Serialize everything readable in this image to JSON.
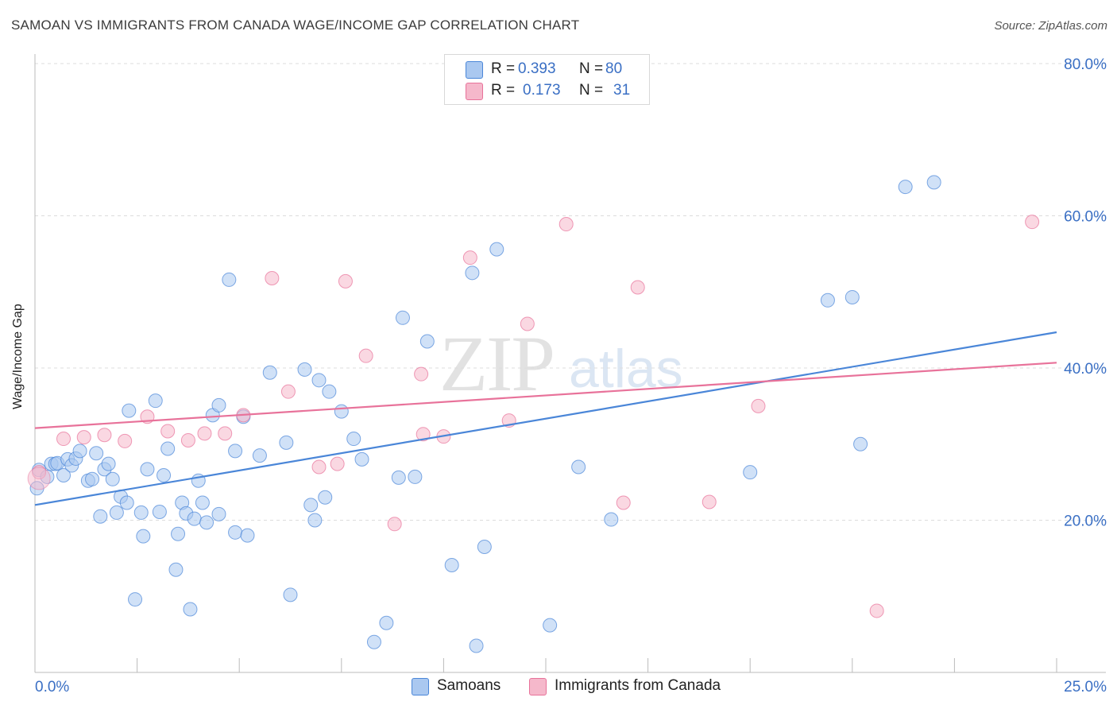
{
  "title": "SAMOAN VS IMMIGRANTS FROM CANADA WAGE/INCOME GAP CORRELATION CHART",
  "source": "Source: ZipAtlas.com",
  "watermark": {
    "part1": "ZIP",
    "part2": "atlas"
  },
  "legend": {
    "rows": [
      {
        "r_label": "R =",
        "r_value": "0.393",
        "n_label": "N =",
        "n_value": "80",
        "color": "#aac8f0"
      },
      {
        "r_label": "R =",
        "r_value": "0.173",
        "n_label": "N =",
        "n_value": "31",
        "color": "#f5b8cb"
      }
    ]
  },
  "bottom_legend": [
    {
      "label": "Samoans",
      "color": "#aac8f0"
    },
    {
      "label": "Immigrants from Canada",
      "color": "#f5b8cb"
    }
  ],
  "chart_data": {
    "type": "scatter",
    "ylabel": "Wage/Income Gap",
    "xlabel": "",
    "xlim": [
      0,
      25
    ],
    "ylim": [
      0,
      80
    ],
    "x_tick_labels": [
      "0.0%",
      "25.0%"
    ],
    "y_tick_labels": [
      "20.0%",
      "40.0%",
      "60.0%",
      "80.0%"
    ],
    "y_ticks": [
      20,
      40,
      60,
      80
    ],
    "grid": true,
    "series": [
      {
        "name": "Samoans",
        "color": "#4a86d8",
        "fill": "#aac8f0",
        "trend": {
          "x": [
            0,
            25
          ],
          "y": [
            22.0,
            44.7
          ]
        },
        "points": [
          [
            0.05,
            24.2
          ],
          [
            0.1,
            26.6
          ],
          [
            0.3,
            25.7
          ],
          [
            0.4,
            27.4
          ],
          [
            0.5,
            27.4
          ],
          [
            0.55,
            27.5
          ],
          [
            0.7,
            25.9
          ],
          [
            0.8,
            28.0
          ],
          [
            0.9,
            27.2
          ],
          [
            1.0,
            28.1
          ],
          [
            1.1,
            29.1
          ],
          [
            1.3,
            25.2
          ],
          [
            1.4,
            25.4
          ],
          [
            1.5,
            28.8
          ],
          [
            1.6,
            20.5
          ],
          [
            1.7,
            26.7
          ],
          [
            1.8,
            27.4
          ],
          [
            1.9,
            25.4
          ],
          [
            2.0,
            21.0
          ],
          [
            2.1,
            23.1
          ],
          [
            2.25,
            22.3
          ],
          [
            2.3,
            34.4
          ],
          [
            2.45,
            9.6
          ],
          [
            2.6,
            21.0
          ],
          [
            2.65,
            17.9
          ],
          [
            2.75,
            26.7
          ],
          [
            2.95,
            35.7
          ],
          [
            3.05,
            21.1
          ],
          [
            3.15,
            25.9
          ],
          [
            3.25,
            29.4
          ],
          [
            3.45,
            13.5
          ],
          [
            3.5,
            18.2
          ],
          [
            3.6,
            22.3
          ],
          [
            3.7,
            20.9
          ],
          [
            3.8,
            8.3
          ],
          [
            3.9,
            20.2
          ],
          [
            4.0,
            25.2
          ],
          [
            4.1,
            22.3
          ],
          [
            4.2,
            19.7
          ],
          [
            4.35,
            33.8
          ],
          [
            4.5,
            35.1
          ],
          [
            4.5,
            20.8
          ],
          [
            4.75,
            51.6
          ],
          [
            4.9,
            29.1
          ],
          [
            4.9,
            18.4
          ],
          [
            5.1,
            33.6
          ],
          [
            5.2,
            18.0
          ],
          [
            5.5,
            28.5
          ],
          [
            5.75,
            39.4
          ],
          [
            6.15,
            30.2
          ],
          [
            6.25,
            10.2
          ],
          [
            6.6,
            39.8
          ],
          [
            6.75,
            22.0
          ],
          [
            6.85,
            20.0
          ],
          [
            6.95,
            38.4
          ],
          [
            7.1,
            23.0
          ],
          [
            7.2,
            36.9
          ],
          [
            7.5,
            34.3
          ],
          [
            7.8,
            30.7
          ],
          [
            8.0,
            28.0
          ],
          [
            8.3,
            4.0
          ],
          [
            8.6,
            6.5
          ],
          [
            8.9,
            25.6
          ],
          [
            9.0,
            46.6
          ],
          [
            9.3,
            25.7
          ],
          [
            9.6,
            43.5
          ],
          [
            10.2,
            14.1
          ],
          [
            10.7,
            52.5
          ],
          [
            10.8,
            3.5
          ],
          [
            11.0,
            16.5
          ],
          [
            11.3,
            55.6
          ],
          [
            12.6,
            6.2
          ],
          [
            13.3,
            27.0
          ],
          [
            14.1,
            20.1
          ],
          [
            17.5,
            26.3
          ],
          [
            19.4,
            48.9
          ],
          [
            20.0,
            49.3
          ],
          [
            20.2,
            30.0
          ],
          [
            21.3,
            63.8
          ],
          [
            22.0,
            64.4
          ]
        ]
      },
      {
        "name": "Immigrants from Canada",
        "color": "#e8729a",
        "fill": "#f5b8cb",
        "trend": {
          "x": [
            0,
            25
          ],
          "y": [
            32.1,
            40.7
          ]
        },
        "points": [
          [
            0.1,
            26.3
          ],
          [
            0.7,
            30.7
          ],
          [
            1.2,
            30.9
          ],
          [
            1.7,
            31.2
          ],
          [
            2.2,
            30.4
          ],
          [
            2.75,
            33.6
          ],
          [
            3.25,
            31.7
          ],
          [
            3.75,
            30.5
          ],
          [
            4.15,
            31.4
          ],
          [
            4.65,
            31.4
          ],
          [
            5.1,
            33.8
          ],
          [
            5.8,
            51.8
          ],
          [
            6.2,
            36.9
          ],
          [
            6.95,
            27.0
          ],
          [
            7.4,
            27.4
          ],
          [
            7.6,
            51.4
          ],
          [
            8.1,
            41.6
          ],
          [
            8.8,
            19.5
          ],
          [
            9.45,
            39.2
          ],
          [
            9.5,
            31.3
          ],
          [
            10.0,
            31.0
          ],
          [
            10.65,
            54.5
          ],
          [
            11.6,
            33.1
          ],
          [
            12.05,
            45.8
          ],
          [
            13.0,
            58.9
          ],
          [
            14.4,
            22.3
          ],
          [
            14.75,
            50.6
          ],
          [
            16.5,
            22.4
          ],
          [
            17.7,
            35.0
          ],
          [
            20.6,
            8.1
          ],
          [
            24.4,
            59.2
          ]
        ]
      }
    ]
  }
}
